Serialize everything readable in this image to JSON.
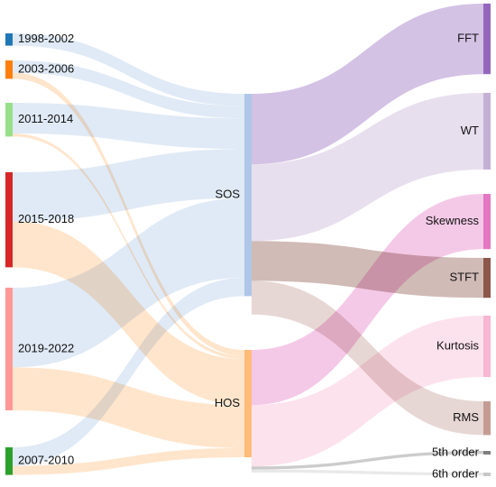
{
  "chart_data": {
    "type": "sankey",
    "colors": {
      "sos_link": "#aec7e8",
      "hos_link": "#ffbb78"
    },
    "source_nodes": [
      {
        "id": "y1998",
        "label": "1998-2002",
        "color": "#1f77b4"
      },
      {
        "id": "y2003",
        "label": "2003-2006",
        "color": "#ff7f0e"
      },
      {
        "id": "y2011",
        "label": "2011-2014",
        "color": "#98df8a"
      },
      {
        "id": "y2015",
        "label": "2015-2018",
        "color": "#d62728"
      },
      {
        "id": "y2019",
        "label": "2019-2022",
        "color": "#ff9896"
      },
      {
        "id": "y2007",
        "label": "2007-2010",
        "color": "#2ca02c"
      }
    ],
    "middle_nodes": [
      {
        "id": "sos",
        "label": "SOS",
        "color": "#aec7e8"
      },
      {
        "id": "hos",
        "label": "HOS",
        "color": "#ffbb78"
      }
    ],
    "target_nodes": [
      {
        "id": "fft",
        "label": "FFT",
        "color": "#9467bd"
      },
      {
        "id": "wt",
        "label": "WT",
        "color": "#c5b0d5"
      },
      {
        "id": "skew",
        "label": "Skewness",
        "color": "#e377c2"
      },
      {
        "id": "stft",
        "label": "STFT",
        "color": "#8c564b"
      },
      {
        "id": "kurt",
        "label": "Kurtosis",
        "color": "#f7b6d2"
      },
      {
        "id": "rms",
        "label": "RMS",
        "color": "#c49c94"
      },
      {
        "id": "o5",
        "label": "5th order",
        "color": "#7f7f7f"
      },
      {
        "id": "o6",
        "label": "6th order",
        "color": "#c7c7c7"
      }
    ],
    "links_to_middle": [
      {
        "source": "y1998",
        "target": "sos",
        "value": 4
      },
      {
        "source": "y2003",
        "target": "sos",
        "value": 4
      },
      {
        "source": "y2003",
        "target": "hos",
        "value": 2
      },
      {
        "source": "y2011",
        "target": "sos",
        "value": 10
      },
      {
        "source": "y2011",
        "target": "hos",
        "value": 1
      },
      {
        "source": "y2015",
        "target": "sos",
        "value": 16
      },
      {
        "source": "y2015",
        "target": "hos",
        "value": 15
      },
      {
        "source": "y2019",
        "target": "sos",
        "value": 26
      },
      {
        "source": "y2019",
        "target": "hos",
        "value": 14
      },
      {
        "source": "y2007",
        "target": "sos",
        "value": 6
      },
      {
        "source": "y2007",
        "target": "hos",
        "value": 3
      }
    ],
    "links_to_target": [
      {
        "source": "sos",
        "target": "fft",
        "value": 23
      },
      {
        "source": "sos",
        "target": "wt",
        "value": 25
      },
      {
        "source": "sos",
        "target": "stft",
        "value": 13
      },
      {
        "source": "sos",
        "target": "rms",
        "value": 11
      },
      {
        "source": "hos",
        "target": "skew",
        "value": 18
      },
      {
        "source": "hos",
        "target": "kurt",
        "value": 20
      },
      {
        "source": "hos",
        "target": "o5",
        "value": 1
      },
      {
        "source": "hos",
        "target": "o6",
        "value": 1
      }
    ]
  }
}
